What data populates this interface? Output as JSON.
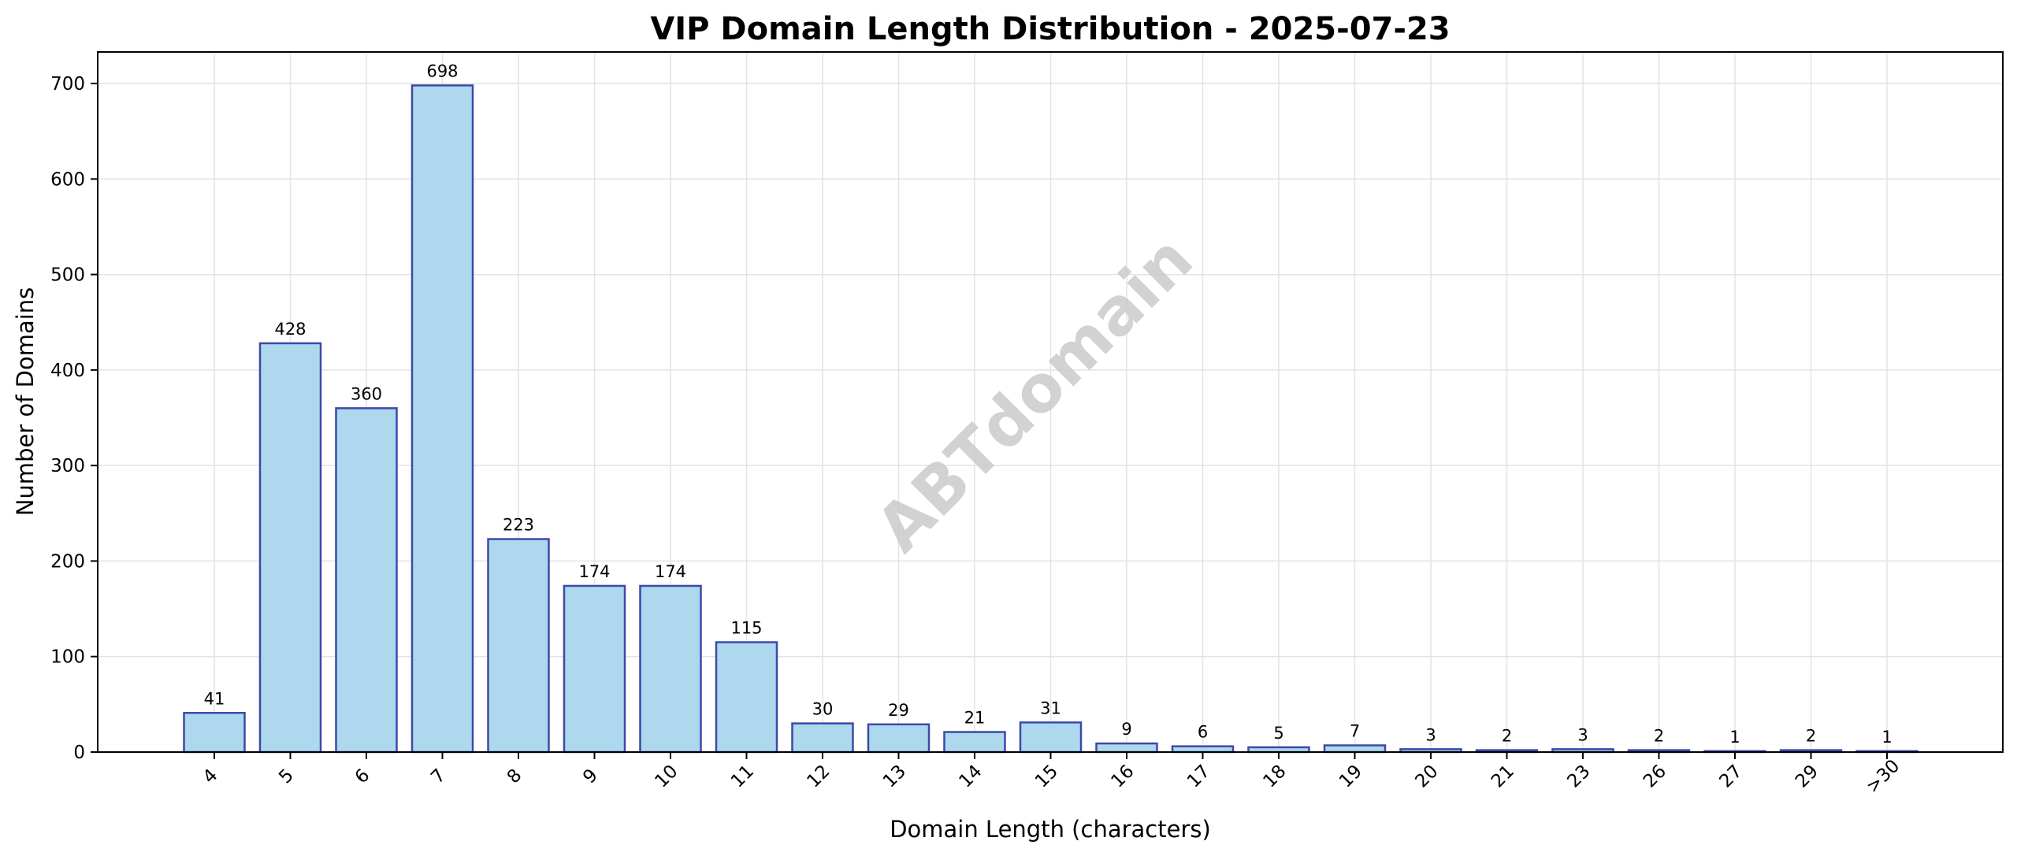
{
  "chart_data": {
    "type": "bar",
    "title": "VIP Domain Length Distribution - 2025-07-23",
    "xlabel": "Domain Length (characters)",
    "ylabel": "Number of Domains",
    "categories": [
      "4",
      "5",
      "6",
      "7",
      "8",
      "9",
      "10",
      "11",
      "12",
      "13",
      "14",
      "15",
      "16",
      "17",
      "18",
      "19",
      "20",
      "21",
      "23",
      "26",
      "27",
      "29",
      ">30"
    ],
    "values": [
      41,
      428,
      360,
      698,
      223,
      174,
      174,
      115,
      30,
      29,
      21,
      31,
      9,
      6,
      5,
      7,
      3,
      2,
      3,
      2,
      1,
      2,
      1
    ],
    "ylim": [
      0,
      733
    ],
    "yticks": [
      0,
      100,
      200,
      300,
      400,
      500,
      600,
      700
    ],
    "grid": true,
    "bar_color": "#add8ee",
    "bar_edge_color": "#3f48a8",
    "watermark": "ABTdomain"
  }
}
